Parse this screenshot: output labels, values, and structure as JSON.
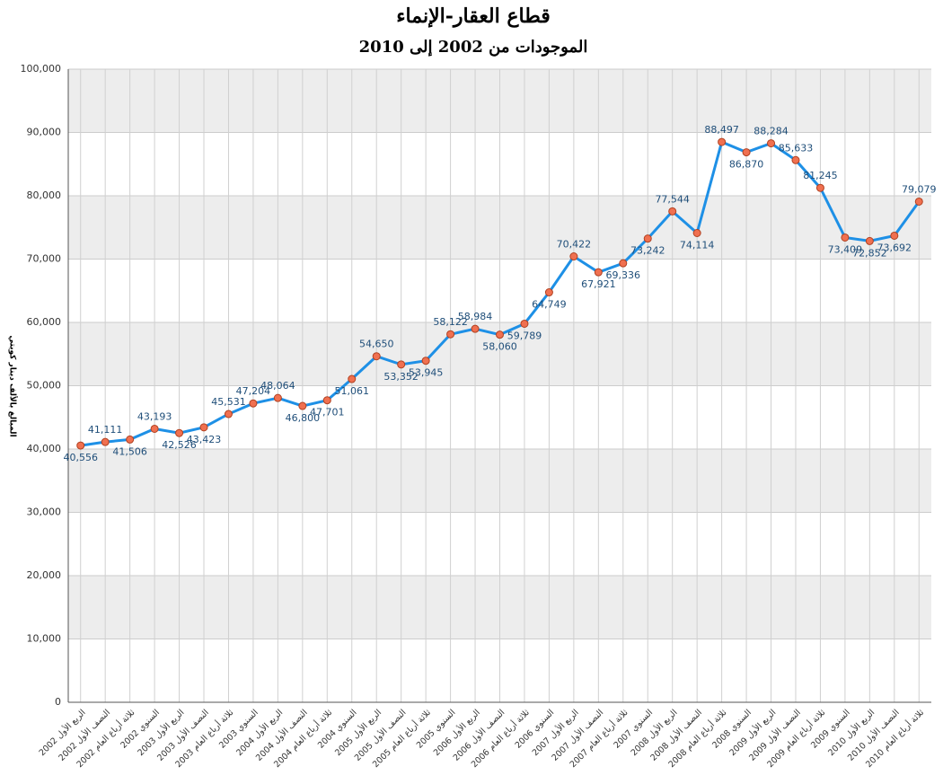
{
  "chart_data": {
    "type": "line",
    "title": "قطاع العقار-الإنماء",
    "subtitle": "الموجودات من 2002 إلى 2010",
    "y_label": "المبالغ بالألف دينار كويتي",
    "categories": [
      "الربع الأول 2002",
      "النصف الأول 2002",
      "ثلاثة أرباع العام 2002",
      "السنوي 2002",
      "الربع الأول 2003",
      "النصف الأول 2003",
      "ثلاثة أرباع العام 2003",
      "السنوي 2003",
      "الربع الأول 2004",
      "النصف الأول 2004",
      "ثلاثة أرباع العام 2004",
      "السنوي 2004",
      "الربع الأول 2005",
      "النصف الأول 2005",
      "ثلاثة أرباع العام 2005",
      "السنوي 2005",
      "الربع الأول 2006",
      "النصف الأول 2006",
      "ثلاثة أرباع العام 2006",
      "السنوي 2006",
      "الربع الأول 2007",
      "النصف الأول 2007",
      "ثلاثة أرباع العام 2007",
      "السنوي 2007",
      "الربع الأول 2008",
      "النصف الأول 2008",
      "ثلاثة أرباع العام 2008",
      "السنوي 2008",
      "الربع الأول 2009",
      "النصف الأول 2009",
      "ثلاثة أرباع العام 2009",
      "السنوي 2009",
      "الربع الأول 2010",
      "النصف الأول 2010",
      "ثلاثة أرباع العام 2010"
    ],
    "values": [
      40556,
      41111,
      41506,
      43193,
      42526,
      43423,
      45531,
      47204,
      48064,
      46800,
      47701,
      51061,
      54650,
      53352,
      53945,
      58122,
      58984,
      58060,
      59789,
      64749,
      70422,
      67921,
      69336,
      73242,
      77544,
      74114,
      88497,
      86870,
      88284,
      85633,
      81245,
      73409,
      72852,
      73692,
      79079
    ],
    "value_labels": [
      "40,556",
      "41,111",
      "41,506",
      "43,193",
      "42,526",
      "43,423",
      "45,531",
      "47,204",
      "48,064",
      "46,800",
      "47,701",
      "51,061",
      "54,650",
      "53,352",
      "53,945",
      "58,122",
      "58,984",
      "58,060",
      "59,789",
      "64,749",
      "70,422",
      "67,921",
      "69,336",
      "73,242",
      "77,544",
      "74,114",
      "88,497",
      "86,870",
      "88,284",
      "85,633",
      "81,245",
      "73,409",
      "72,852",
      "73,692",
      "79,079"
    ],
    "color": "#1e90e6",
    "marker_color": "#f07050",
    "ylim": [
      0,
      100000
    ],
    "yticks": [
      0,
      {
        "value": 10000,
        "label": "10,000"
      },
      {
        "value": 20000,
        "label": "20,000"
      },
      {
        "value": 30000,
        "label": "30,000"
      },
      {
        "value": 40000,
        "label": "40,000"
      },
      {
        "value": 50000,
        "label": "50,000"
      },
      {
        "value": 60000,
        "label": "60,000"
      },
      {
        "value": 70000,
        "label": "70,000"
      },
      {
        "value": 80000,
        "label": "80,000"
      },
      {
        "value": 90000,
        "label": "90,000"
      },
      {
        "value": 100000,
        "label": "100,000"
      }
    ],
    "grid": true
  }
}
